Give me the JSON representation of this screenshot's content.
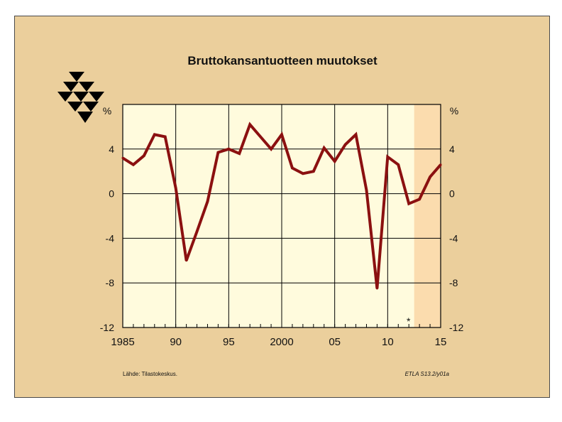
{
  "chart_data": {
    "type": "line",
    "title": "Bruttokansantuotteen muutokset",
    "ylabel_left": "%",
    "ylabel_right": "%",
    "x": [
      1985,
      1986,
      1987,
      1988,
      1989,
      1990,
      1991,
      1992,
      1993,
      1994,
      1995,
      1996,
      1997,
      1998,
      1999,
      2000,
      2001,
      2002,
      2003,
      2004,
      2005,
      2006,
      2007,
      2008,
      2009,
      2010,
      2011,
      2012,
      2013,
      2014,
      2015
    ],
    "series": [
      {
        "values": [
          3.2,
          2.6,
          3.4,
          5.3,
          5.1,
          0.5,
          -6.0,
          -3.4,
          -0.7,
          3.7,
          4.0,
          3.6,
          6.2,
          5.1,
          4.0,
          5.3,
          2.3,
          1.8,
          2.0,
          4.1,
          2.9,
          4.4,
          5.3,
          0.3,
          -8.5,
          3.3,
          2.6,
          -0.9,
          -0.5,
          1.5,
          2.6
        ]
      }
    ],
    "xlim": [
      1985,
      2015
    ],
    "ylim": [
      -12,
      8
    ],
    "yticks": [
      -12,
      -8,
      -4,
      0,
      4
    ],
    "xtick_labels": [
      {
        "x": 1985,
        "label": "1985"
      },
      {
        "x": 1990,
        "label": "90"
      },
      {
        "x": 1995,
        "label": "95"
      },
      {
        "x": 2000,
        "label": "2000"
      },
      {
        "x": 2005,
        "label": "05"
      },
      {
        "x": 2010,
        "label": "10"
      },
      {
        "x": 2015,
        "label": "15"
      }
    ],
    "forecast_start": 2012.5,
    "forecast_marker": "*",
    "grid": true,
    "colors": {
      "line": "#8b1010",
      "plot_bg": "#fffbdd",
      "forecast_bg": "#fbdcae",
      "slide_bg": "#ebcf9c",
      "grid": "#000000"
    }
  },
  "footer": {
    "source": "Lähde:   Tilastokeskus.",
    "code": "ETLA S13.2/y01a"
  },
  "logo": {
    "icon": "etla-triangles-logo-icon",
    "color": "#000000"
  }
}
